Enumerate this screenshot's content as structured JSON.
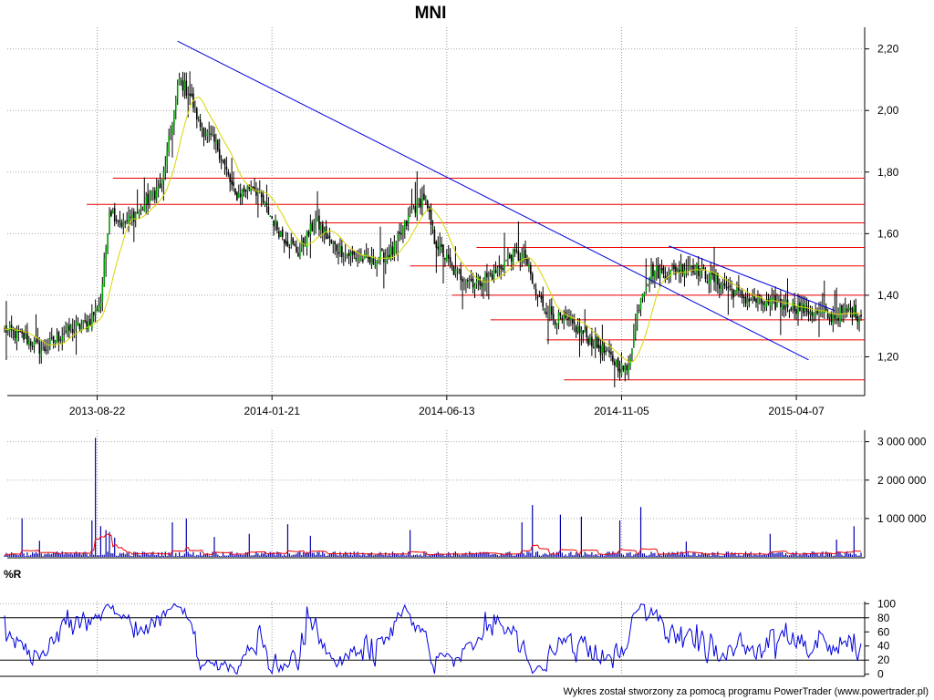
{
  "chart_data": [
    {
      "type": "candlestick",
      "title": "MNI",
      "x_tick_labels": [
        "2013-08-22",
        "2014-01-21",
        "2014-06-13",
        "2014-11-05",
        "2015-04-07"
      ],
      "y_tick_labels": [
        "1,20",
        "1,40",
        "1,60",
        "1,80",
        "2,00",
        "2,20"
      ],
      "y_ticks": [
        1.2,
        1.4,
        1.6,
        1.8,
        2.0,
        2.2
      ],
      "ylim": [
        1.08,
        2.27
      ],
      "grid": true,
      "moving_average_color": "#d6d600",
      "candle_up_color": "#00a000",
      "candle_down_color": "#000000",
      "price_anchors": [
        {
          "i": 0,
          "v": 1.29
        },
        {
          "i": 12,
          "v": 1.26
        },
        {
          "i": 22,
          "v": 1.22
        },
        {
          "i": 34,
          "v": 1.28
        },
        {
          "i": 48,
          "v": 1.31
        },
        {
          "i": 55,
          "v": 1.38
        },
        {
          "i": 60,
          "v": 1.68
        },
        {
          "i": 68,
          "v": 1.63
        },
        {
          "i": 78,
          "v": 1.68
        },
        {
          "i": 90,
          "v": 1.76
        },
        {
          "i": 100,
          "v": 2.1
        },
        {
          "i": 106,
          "v": 2.05
        },
        {
          "i": 112,
          "v": 1.95
        },
        {
          "i": 122,
          "v": 1.88
        },
        {
          "i": 132,
          "v": 1.72
        },
        {
          "i": 142,
          "v": 1.76
        },
        {
          "i": 150,
          "v": 1.68
        },
        {
          "i": 158,
          "v": 1.6
        },
        {
          "i": 168,
          "v": 1.54
        },
        {
          "i": 178,
          "v": 1.64
        },
        {
          "i": 188,
          "v": 1.56
        },
        {
          "i": 198,
          "v": 1.53
        },
        {
          "i": 210,
          "v": 1.51
        },
        {
          "i": 222,
          "v": 1.54
        },
        {
          "i": 234,
          "v": 1.68
        },
        {
          "i": 240,
          "v": 1.72
        },
        {
          "i": 246,
          "v": 1.58
        },
        {
          "i": 258,
          "v": 1.47
        },
        {
          "i": 270,
          "v": 1.44
        },
        {
          "i": 280,
          "v": 1.47
        },
        {
          "i": 290,
          "v": 1.53
        },
        {
          "i": 298,
          "v": 1.52
        },
        {
          "i": 304,
          "v": 1.4
        },
        {
          "i": 314,
          "v": 1.33
        },
        {
          "i": 326,
          "v": 1.3
        },
        {
          "i": 338,
          "v": 1.24
        },
        {
          "i": 350,
          "v": 1.18
        },
        {
          "i": 356,
          "v": 1.15
        },
        {
          "i": 364,
          "v": 1.4
        },
        {
          "i": 370,
          "v": 1.48
        },
        {
          "i": 380,
          "v": 1.47
        },
        {
          "i": 392,
          "v": 1.5
        },
        {
          "i": 400,
          "v": 1.47
        },
        {
          "i": 412,
          "v": 1.43
        },
        {
          "i": 424,
          "v": 1.39
        },
        {
          "i": 436,
          "v": 1.37
        },
        {
          "i": 448,
          "v": 1.37
        },
        {
          "i": 460,
          "v": 1.35
        },
        {
          "i": 472,
          "v": 1.33
        },
        {
          "i": 484,
          "v": 1.35
        },
        {
          "i": 490,
          "v": 1.33
        }
      ],
      "horizontal_levels": [
        {
          "value": 1.78,
          "from": 62
        },
        {
          "value": 1.695,
          "from": 47
        },
        {
          "value": 1.635,
          "from": 180
        },
        {
          "value": 1.555,
          "from": 270
        },
        {
          "value": 1.495,
          "from": 232
        },
        {
          "value": 1.4,
          "from": 256
        },
        {
          "value": 1.32,
          "from": 278
        },
        {
          "value": 1.255,
          "from": 310
        },
        {
          "value": 1.125,
          "from": 320
        }
      ],
      "trend_lines": [
        {
          "from": {
            "i": 99,
            "v": 2.225
          },
          "to": {
            "i": 460,
            "v": 1.19
          }
        },
        {
          "from": {
            "i": 380,
            "v": 1.56
          },
          "to": {
            "i": 475,
            "v": 1.35
          }
        }
      ],
      "trend_line_color": "#0000dd",
      "level_line_color": "#ee0000"
    },
    {
      "type": "bar",
      "title": "",
      "y_tick_labels": [
        "1 000 000",
        "2 000 000",
        "3 000 000"
      ],
      "y_ticks": [
        1000000,
        2000000,
        3000000
      ],
      "ylim": [
        0,
        3300000
      ],
      "bar_color": "#0000aa",
      "average_color": "#ee0000",
      "typical_volume": 90000,
      "spikes": [
        {
          "i": 52,
          "v": 3100000
        },
        {
          "i": 50,
          "v": 950000
        },
        {
          "i": 55,
          "v": 800000
        },
        {
          "i": 58,
          "v": 700000
        },
        {
          "i": 60,
          "v": 650000
        },
        {
          "i": 63,
          "v": 500000
        },
        {
          "i": 10,
          "v": 1000000
        },
        {
          "i": 20,
          "v": 420000
        },
        {
          "i": 96,
          "v": 900000
        },
        {
          "i": 104,
          "v": 1000000
        },
        {
          "i": 120,
          "v": 520000
        },
        {
          "i": 140,
          "v": 600000
        },
        {
          "i": 162,
          "v": 850000
        },
        {
          "i": 175,
          "v": 550000
        },
        {
          "i": 232,
          "v": 700000
        },
        {
          "i": 296,
          "v": 900000
        },
        {
          "i": 302,
          "v": 1350000
        },
        {
          "i": 318,
          "v": 1100000
        },
        {
          "i": 330,
          "v": 1050000
        },
        {
          "i": 352,
          "v": 950000
        },
        {
          "i": 364,
          "v": 1300000
        },
        {
          "i": 390,
          "v": 400000
        },
        {
          "i": 438,
          "v": 600000
        },
        {
          "i": 476,
          "v": 450000
        },
        {
          "i": 486,
          "v": 800000
        }
      ]
    },
    {
      "type": "line",
      "title": "%R",
      "y_tick_labels": [
        "0",
        "20",
        "40",
        "60",
        "80",
        "100"
      ],
      "y_ticks": [
        0,
        20,
        40,
        60,
        80,
        100
      ],
      "ylim": [
        -3,
        103
      ],
      "reference_lines": [
        20,
        80
      ],
      "series_color": "#0000dd"
    }
  ],
  "footer": {
    "credit": "Wykres został stworzony za pomocą programu PowerTrader (www.powertrader.pl)"
  }
}
